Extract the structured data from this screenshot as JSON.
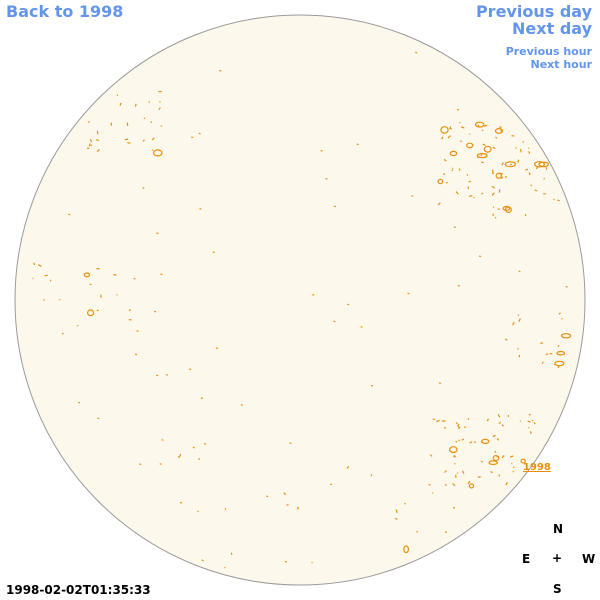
{
  "nav": {
    "back_label": "Back to 1998",
    "previous_day_label": "Previous day",
    "next_day_label": "Next day",
    "previous_hour_label": "Previous hour",
    "next_hour_label": "Next hour"
  },
  "compass": {
    "north": "N",
    "south": "S",
    "east": "E",
    "west": "W",
    "center": "+"
  },
  "timestamp": "1998-02-02T01:35:33",
  "region": {
    "label": "1998"
  },
  "colors": {
    "disk_fill": "#fdf8ec",
    "disk_stroke": "#9a9a9a",
    "contour": "#e8900a",
    "link": "#6495ed"
  }
}
